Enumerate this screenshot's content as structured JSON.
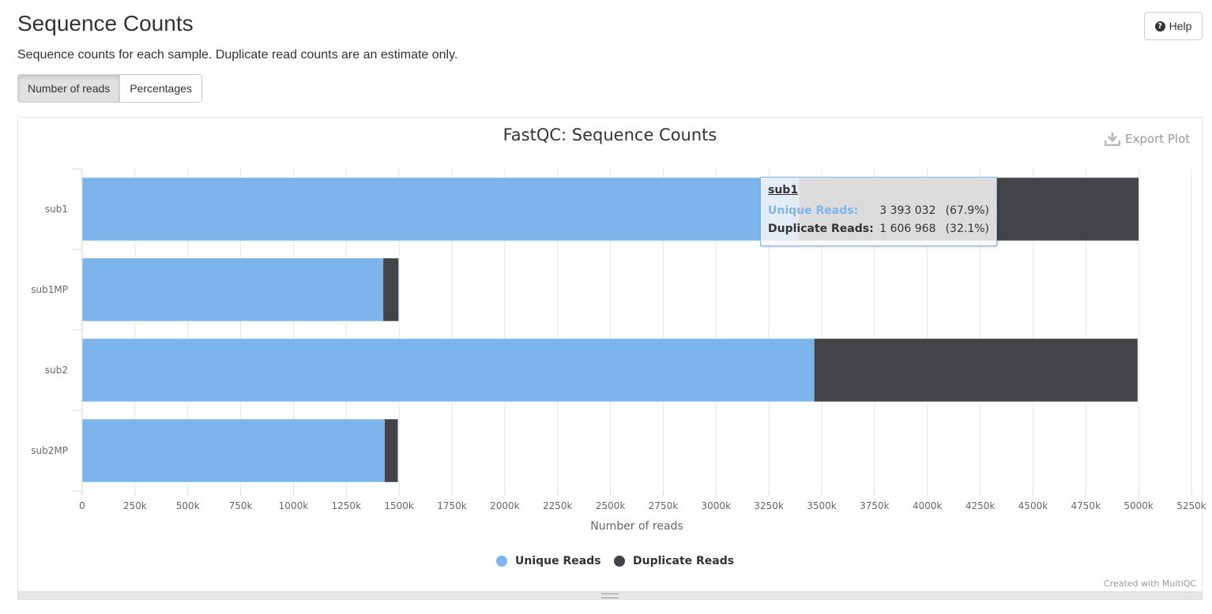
{
  "header": {
    "title": "Sequence Counts",
    "description": "Sequence counts for each sample. Duplicate read counts are an estimate only.",
    "help_label": "Help"
  },
  "toggle": {
    "reads_label": "Number of reads",
    "percent_label": "Percentages"
  },
  "plot": {
    "export_label": "Export Plot",
    "credit": "Created with MultiQC"
  },
  "tooltip": {
    "sample": "sub1",
    "unique_label": "Unique Reads:",
    "unique_value": "3 393 032",
    "unique_pct": "(67.9%)",
    "dup_label": "Duplicate Reads:",
    "dup_value": "1 606 968",
    "dup_pct": "(32.1%)"
  },
  "chart_data": {
    "type": "bar",
    "orientation": "horizontal",
    "stacked": true,
    "title": "FastQC: Sequence Counts",
    "xlabel": "Number of reads",
    "ylabel": "",
    "xlim": [
      0,
      5250000
    ],
    "categories": [
      "sub1",
      "sub1MP",
      "sub2",
      "sub2MP"
    ],
    "series": [
      {
        "name": "Unique Reads",
        "color": "#7cb5ec",
        "values": [
          3393032,
          1425000,
          3465000,
          1432000
        ]
      },
      {
        "name": "Duplicate Reads",
        "color": "#434348",
        "values": [
          1606968,
          72000,
          1530000,
          62000
        ]
      }
    ],
    "xticks": [
      "0",
      "250k",
      "500k",
      "750k",
      "1000k",
      "1250k",
      "1500k",
      "1750k",
      "2000k",
      "2250k",
      "2500k",
      "2750k",
      "3000k",
      "3250k",
      "3500k",
      "3750k",
      "4000k",
      "4250k",
      "4500k",
      "4750k",
      "5000k",
      "5250k"
    ],
    "grid": true,
    "legend": "bottom-center"
  }
}
